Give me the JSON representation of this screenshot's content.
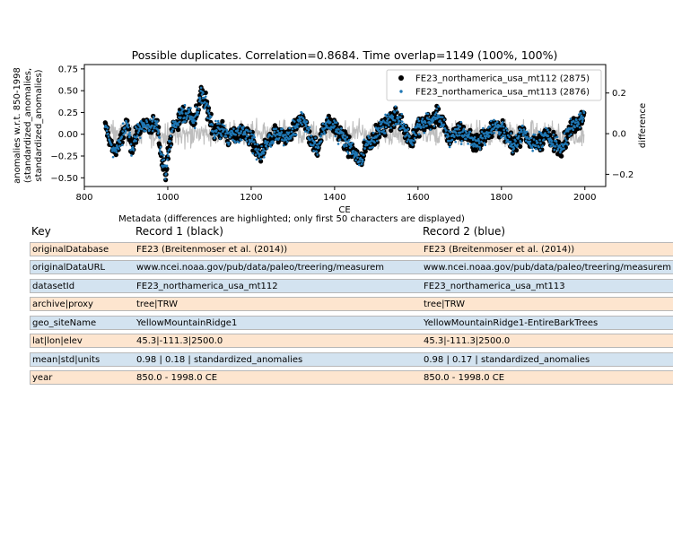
{
  "chart_data": {
    "type": "scatter",
    "title": "Possible duplicates. Correlation=0.8684. Time overlap=1149 (100%, 100%)",
    "xlabel": "CE",
    "ylabel": [
      "anomalies w.r.t. 850-1998",
      "(standardized_anomalies,",
      "standardized_anomalies)"
    ],
    "y2label": "difference",
    "xlim": [
      800,
      2050
    ],
    "ylim": [
      -0.6,
      0.8
    ],
    "y2lim": [
      -0.26,
      0.34
    ],
    "xticks": [
      800,
      1000,
      1200,
      1400,
      1600,
      1800,
      2000
    ],
    "yticks": [
      -0.5,
      -0.25,
      0.0,
      0.25,
      0.5,
      0.75
    ],
    "ytick_labels": [
      "−0.50",
      "−0.25",
      "0.00",
      "0.25",
      "0.50",
      "0.75"
    ],
    "y2ticks": [
      -0.2,
      0.0,
      0.2
    ],
    "y2tick_labels": [
      "−0.2",
      "0.0",
      "0.2"
    ],
    "grid": false,
    "legend_position": "top-right",
    "series": [
      {
        "name": "FE23_northamerica_usa_mt112 (2875)",
        "color": "#000000",
        "marker": "circle-large"
      },
      {
        "name": "FE23_northamerica_usa_mt113 (2876)",
        "color": "#1f77b4",
        "marker": "circle-small"
      },
      {
        "name": "",
        "color": "#bdbdbd",
        "marker": "line"
      }
    ],
    "x_range_data": [
      850,
      1998
    ],
    "anchors": [
      [
        850,
        0.1
      ],
      [
        870,
        -0.2
      ],
      [
        885,
        -0.1
      ],
      [
        900,
        0.1
      ],
      [
        915,
        -0.15
      ],
      [
        930,
        0.05
      ],
      [
        945,
        0.15
      ],
      [
        960,
        0.05
      ],
      [
        975,
        0.15
      ],
      [
        985,
        -0.3
      ],
      [
        995,
        -0.45
      ],
      [
        1010,
        0.05
      ],
      [
        1030,
        0.2
      ],
      [
        1050,
        0.25
      ],
      [
        1065,
        0.15
      ],
      [
        1080,
        0.45
      ],
      [
        1095,
        0.3
      ],
      [
        1110,
        0.05
      ],
      [
        1130,
        0.05
      ],
      [
        1150,
        -0.05
      ],
      [
        1175,
        0.05
      ],
      [
        1200,
        -0.05
      ],
      [
        1220,
        -0.25
      ],
      [
        1240,
        -0.1
      ],
      [
        1260,
        0.0
      ],
      [
        1290,
        -0.05
      ],
      [
        1310,
        0.1
      ],
      [
        1325,
        0.2
      ],
      [
        1345,
        -0.1
      ],
      [
        1360,
        -0.15
      ],
      [
        1380,
        0.15
      ],
      [
        1400,
        0.1
      ],
      [
        1420,
        -0.05
      ],
      [
        1445,
        -0.2
      ],
      [
        1460,
        -0.3
      ],
      [
        1480,
        -0.1
      ],
      [
        1500,
        0.0
      ],
      [
        1520,
        0.1
      ],
      [
        1545,
        0.2
      ],
      [
        1565,
        0.1
      ],
      [
        1585,
        -0.1
      ],
      [
        1600,
        0.1
      ],
      [
        1625,
        0.15
      ],
      [
        1650,
        0.2
      ],
      [
        1675,
        -0.05
      ],
      [
        1700,
        0.05
      ],
      [
        1725,
        -0.05
      ],
      [
        1745,
        -0.1
      ],
      [
        1770,
        0.05
      ],
      [
        1790,
        0.1
      ],
      [
        1810,
        0.0
      ],
      [
        1830,
        -0.15
      ],
      [
        1850,
        0.05
      ],
      [
        1870,
        -0.1
      ],
      [
        1890,
        -0.1
      ],
      [
        1905,
        0.0
      ],
      [
        1925,
        -0.1
      ],
      [
        1945,
        -0.15
      ],
      [
        1960,
        0.0
      ],
      [
        1975,
        0.1
      ],
      [
        1990,
        0.15
      ],
      [
        1998,
        0.25
      ]
    ]
  },
  "metadata": {
    "caption": "Metadata (differences are highlighted; only first 50 characters are displayed)",
    "headers": {
      "key": "Key",
      "record1": "Record 1 (black)",
      "record2": "Record 2 (blue)"
    },
    "rows": [
      {
        "key": "originalDatabase",
        "r1": "FE23 (Breitenmoser et al. (2014))",
        "r2": "FE23 (Breitenmoser et al. (2014))",
        "highlight": "orange"
      },
      {
        "key": "originalDataURL",
        "r1": "www.ncei.noaa.gov/pub/data/paleo/treering/measurem",
        "r2": "www.ncei.noaa.gov/pub/data/paleo/treering/measurem",
        "highlight": "blue"
      },
      {
        "key": "datasetId",
        "r1": "FE23_northamerica_usa_mt112",
        "r2": "FE23_northamerica_usa_mt113",
        "highlight": "blue"
      },
      {
        "key": "archive|proxy",
        "r1": "tree|TRW",
        "r2": "tree|TRW",
        "highlight": "orange"
      },
      {
        "key": "geo_siteName",
        "r1": "YellowMountainRidge1",
        "r2": "YellowMountainRidge1-EntireBarkTrees",
        "highlight": "blue"
      },
      {
        "key": "lat|lon|elev",
        "r1": "45.3|-111.3|2500.0",
        "r2": "45.3|-111.3|2500.0",
        "highlight": "orange"
      },
      {
        "key": "mean|std|units",
        "r1": "0.98 | 0.18 | standardized_anomalies",
        "r2": "0.98 | 0.17 | standardized_anomalies",
        "highlight": "blue"
      },
      {
        "key": "year",
        "r1": "850.0 - 1998.0 CE",
        "r2": "850.0 - 1998.0 CE",
        "highlight": "orange"
      }
    ]
  }
}
